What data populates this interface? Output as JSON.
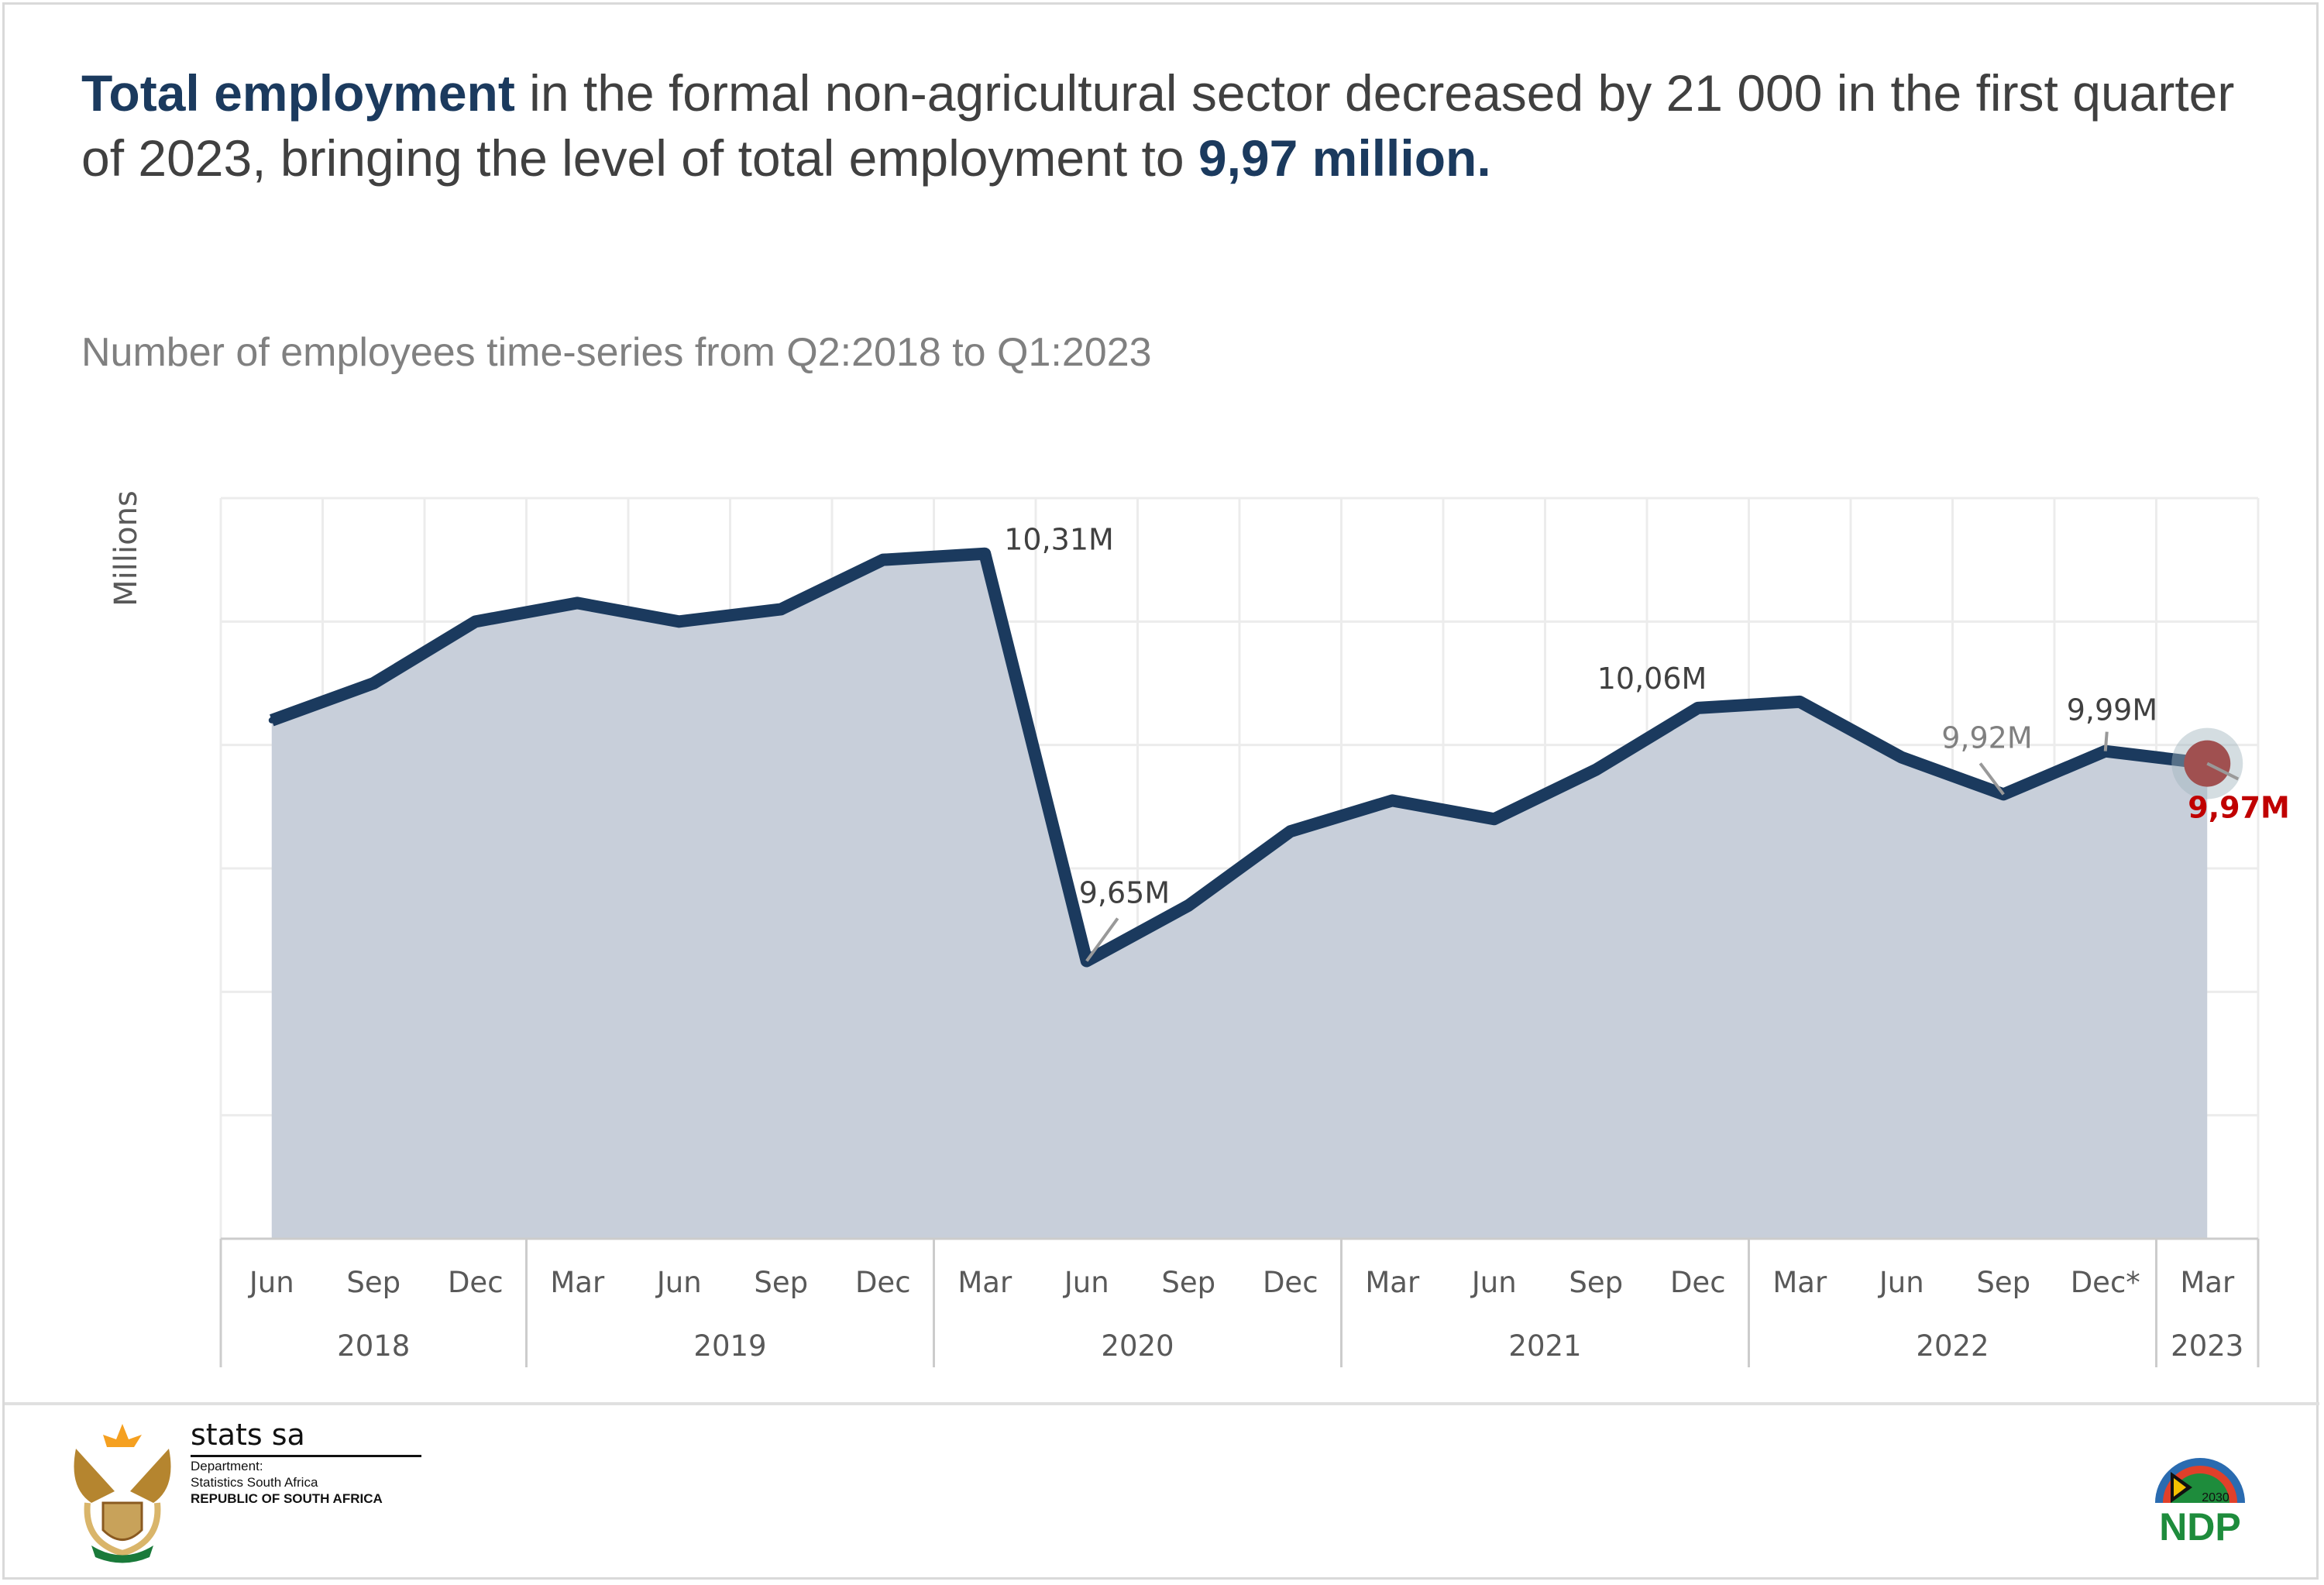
{
  "headline": {
    "bold_lead": "Total employment",
    "middle": " in the formal non-agricultural sector decreased by 21 000 in the first quarter of 2023, bringing the level of total employment to ",
    "bold_tail": "9,97 million."
  },
  "colors": {
    "line": "#1b3a5e",
    "area": "#c8cfda",
    "highlight": "#c00000",
    "marker": "#a05050",
    "grid": "#ececec"
  },
  "chart_data": {
    "type": "area",
    "title": "Number of employees time-series from Q2:2018 to Q1:2023",
    "ylabel": "Millions",
    "xlabel": "",
    "ylim": [
      9.2,
      10.4
    ],
    "grid": true,
    "categories": [
      "Jun",
      "Sep",
      "Dec",
      "Mar",
      "Jun",
      "Sep",
      "Dec",
      "Mar",
      "Jun",
      "Sep",
      "Dec",
      "Mar",
      "Jun",
      "Sep",
      "Dec",
      "Mar",
      "Jun",
      "Sep",
      "Dec*",
      "Mar"
    ],
    "years": [
      {
        "label": "2018",
        "span": 3
      },
      {
        "label": "2019",
        "span": 4
      },
      {
        "label": "2020",
        "span": 4
      },
      {
        "label": "2021",
        "span": 4
      },
      {
        "label": "2022",
        "span": 4
      },
      {
        "label": "2023",
        "span": 1
      }
    ],
    "series": [
      {
        "name": "Number of employees",
        "values": [
          10.04,
          10.1,
          10.2,
          10.23,
          10.2,
          10.22,
          10.3,
          10.31,
          9.65,
          9.74,
          9.86,
          9.91,
          9.88,
          9.96,
          10.06,
          10.07,
          9.98,
          9.92,
          9.99,
          9.97
        ]
      }
    ],
    "annotations": [
      {
        "index": 7,
        "text": "10,31M",
        "style": "dark",
        "pos": "right"
      },
      {
        "index": 8,
        "text": "9,65M",
        "style": "dark",
        "pos": "above-right",
        "leader": true
      },
      {
        "index": 14,
        "text": "10,06M",
        "style": "dark",
        "pos": "above-left"
      },
      {
        "index": 17,
        "text": "9,92M",
        "style": "gray",
        "pos": "above-left",
        "leader": true
      },
      {
        "index": 18,
        "text": "9,99M",
        "style": "dark",
        "pos": "above",
        "leader": true
      },
      {
        "index": 19,
        "text": "9,97M",
        "style": "red",
        "pos": "below-right",
        "leader": true
      }
    ]
  },
  "footer": {
    "logo_brand": "stats sa",
    "logo_line1": "Department:",
    "logo_line2": "Statistics South Africa",
    "logo_line3": "REPUBLIC OF SOUTH AFRICA",
    "ndp_year": "2030",
    "ndp_text": "NDP"
  }
}
